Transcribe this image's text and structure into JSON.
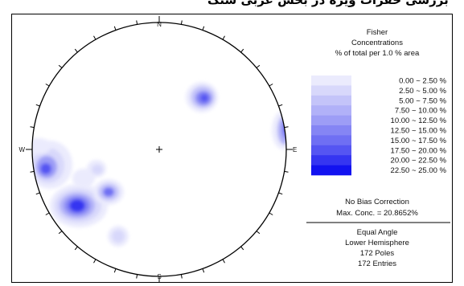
{
  "header_text": "بررسی حفرات ویژه در بخش غربی سنگ",
  "plot": {
    "compass": {
      "north": "N",
      "south": "S",
      "east": "E",
      "west": "W"
    },
    "title_lines": [
      "Fisher",
      "Concentrations",
      "% of total per 1.0 % area"
    ],
    "legend": [
      {
        "label": "0.00 ~  2.50 %",
        "color": "#ebebfd"
      },
      {
        "label": "2.50 ~  5.00 %",
        "color": "#d8d8fb"
      },
      {
        "label": "5.00 ~  7.50 %",
        "color": "#c4c4f9"
      },
      {
        "label": "7.50 ~ 10.00 %",
        "color": "#b1b1f8"
      },
      {
        "label": "10.00 ~ 12.50 %",
        "color": "#9d9df6"
      },
      {
        "label": "12.50 ~ 15.00 %",
        "color": "#8585f4"
      },
      {
        "label": "15.00 ~ 17.50 %",
        "color": "#6f6ff3"
      },
      {
        "label": "17.50 ~ 20.00 %",
        "color": "#5555f2"
      },
      {
        "label": "20.00 ~ 22.50 %",
        "color": "#3535f1"
      },
      {
        "label": "22.50 ~ 25.00 %",
        "color": "#1212f0"
      }
    ],
    "bias_text": "No Bias Correction",
    "max_conc_text": "Max. Conc. = 20.8652%",
    "info_lines": [
      "Equal Angle",
      "Lower Hemisphere",
      "172 Poles",
      "172 Entries"
    ]
  }
}
